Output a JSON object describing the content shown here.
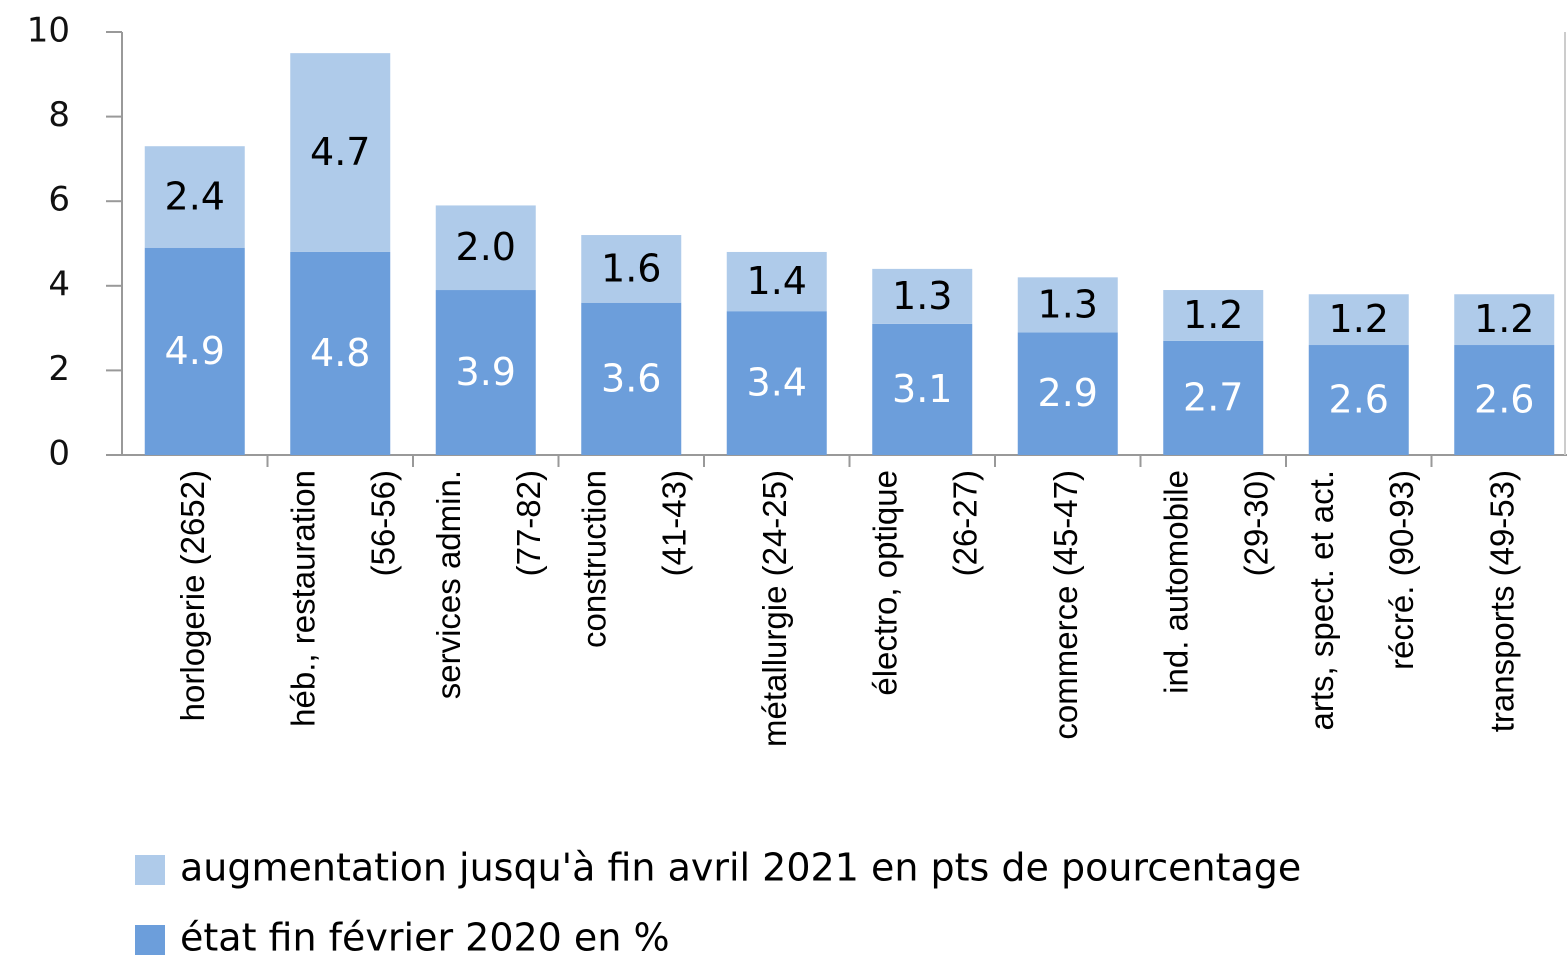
{
  "chart_data": {
    "type": "stacked_bar",
    "categories": [
      "horlogerie (2652)",
      "héb., restauration\n(56-56)",
      "services admin.\n(77-82)",
      "construction\n(41-43)",
      "métallurgie (24-25)",
      "électro, optique\n(26-27)",
      "commerce (45-47)",
      "ind. automobile\n(29-30)",
      "arts, spect. et act.\nrécré. (90-93)",
      "transports (49-53)"
    ],
    "series": [
      {
        "name": "état fin février 2020 en %",
        "color": "#6c9edb",
        "values": [
          4.9,
          4.8,
          3.9,
          3.6,
          3.4,
          3.1,
          2.9,
          2.7,
          2.6,
          2.6
        ],
        "value_labels": [
          "4.9",
          "4.8",
          "3.9",
          "3.6",
          "3.4",
          "3.1",
          "2.9",
          "2.7",
          "2.6",
          "2.6"
        ]
      },
      {
        "name": "augmentation jusqu'à fin avril 2021 en pts de pourcentage",
        "color": "#afcbea",
        "values": [
          2.4,
          4.7,
          2.0,
          1.6,
          1.4,
          1.3,
          1.3,
          1.2,
          1.2,
          1.2
        ],
        "value_labels": [
          "2.4",
          "4.7",
          "2.0",
          "1.6",
          "1.4",
          "1.3",
          "1.3",
          "1.2",
          "1.2",
          "1.2"
        ]
      }
    ],
    "ylim": [
      0,
      10
    ],
    "yticks": [
      0,
      2,
      4,
      6,
      8,
      10
    ],
    "grid": false
  }
}
